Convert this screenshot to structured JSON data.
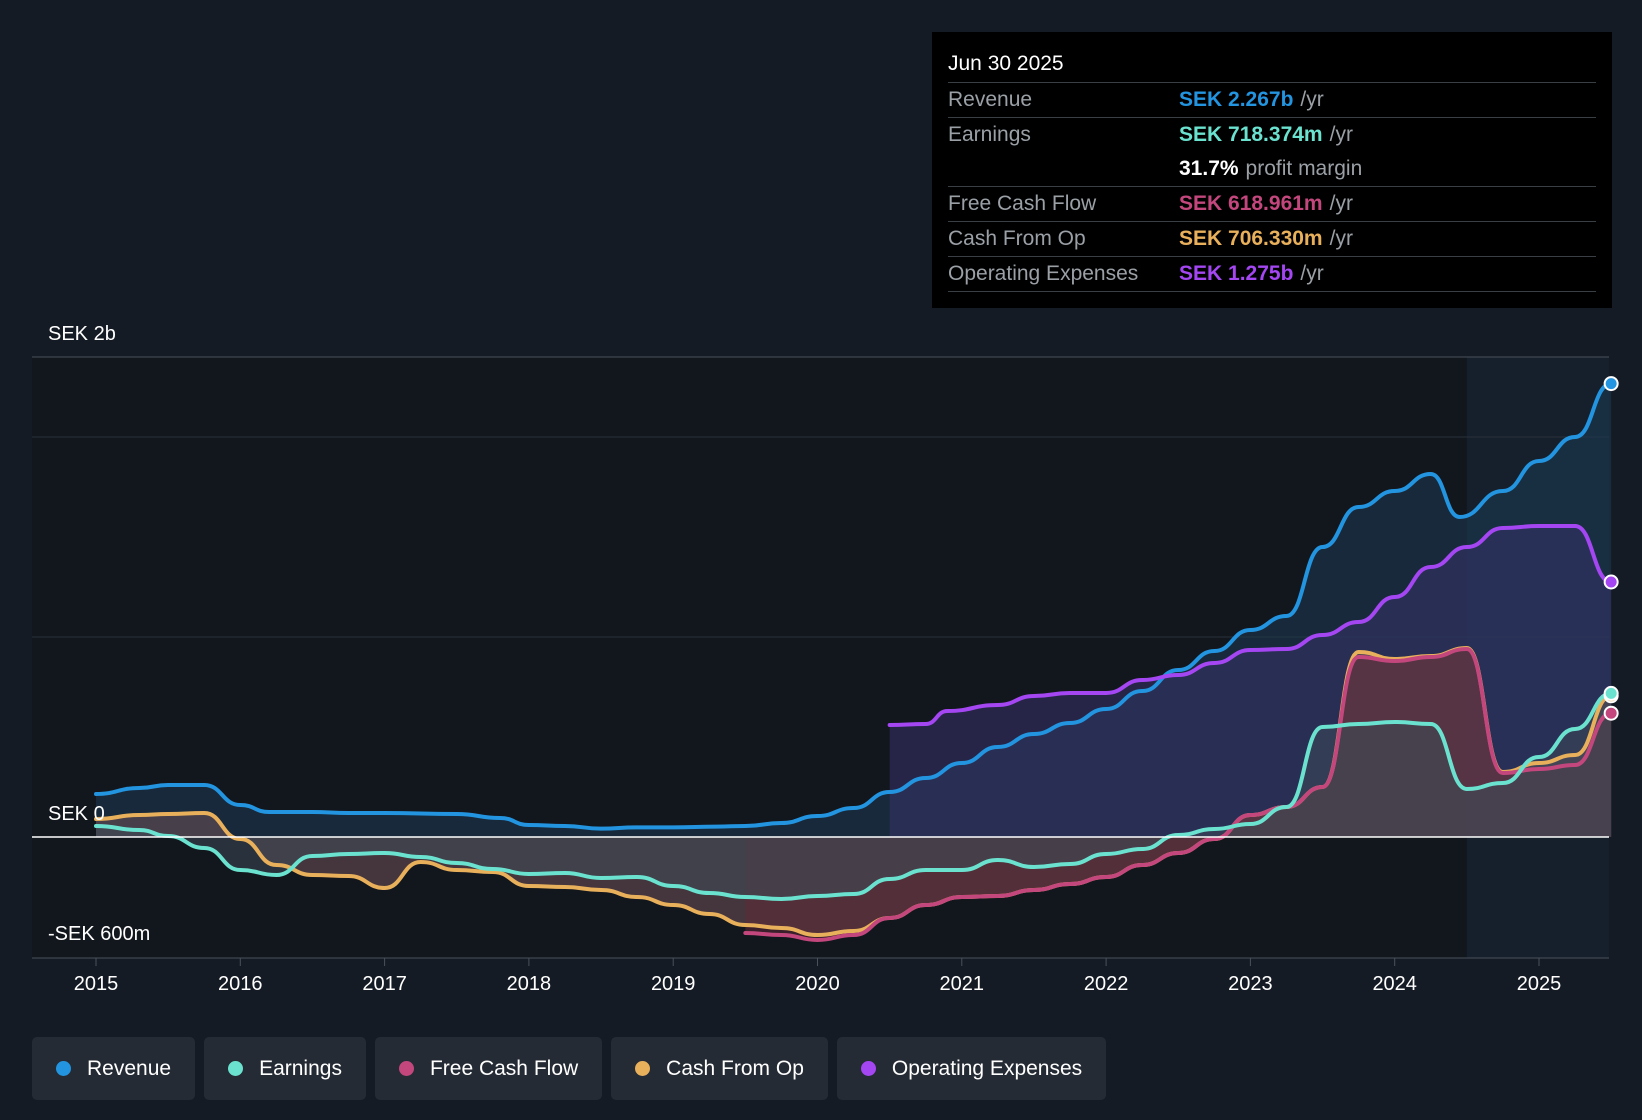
{
  "tooltip": {
    "date": "Jun 30 2025",
    "rows": {
      "revenue": {
        "label": "Revenue",
        "value": "SEK 2.267b",
        "unit": "/yr"
      },
      "earnings": {
        "label": "Earnings",
        "value": "SEK 718.374m",
        "unit": "/yr"
      },
      "margin": {
        "value": "31.7%",
        "unit": "profit margin"
      },
      "fcf": {
        "label": "Free Cash Flow",
        "value": "SEK 618.961m",
        "unit": "/yr"
      },
      "cfo": {
        "label": "Cash From Op",
        "value": "SEK 706.330m",
        "unit": "/yr"
      },
      "opex": {
        "label": "Operating Expenses",
        "value": "SEK 1.275b",
        "unit": "/yr"
      }
    }
  },
  "legend": [
    {
      "label": "Revenue",
      "color": "#2394df"
    },
    {
      "label": "Earnings",
      "color": "#6be2cf"
    },
    {
      "label": "Free Cash Flow",
      "color": "#c3477d"
    },
    {
      "label": "Cash From Op",
      "color": "#e9b05c"
    },
    {
      "label": "Operating Expenses",
      "color": "#a446f2"
    }
  ],
  "chart_data": {
    "type": "line",
    "title": "",
    "currency": "SEK",
    "ylim": [
      -600,
      2400
    ],
    "y_labels": {
      "top": "SEK 2b",
      "zero": "SEK 0",
      "bottom": "-SEK 600m"
    },
    "x_ticks": [
      "2015",
      "2016",
      "2017",
      "2018",
      "2019",
      "2020",
      "2021",
      "2022",
      "2023",
      "2024",
      "2025"
    ],
    "x_range": [
      2014.55,
      2025.5
    ],
    "forecast_start": 2024.5,
    "series": [
      {
        "name": "Revenue",
        "color": "#2394df",
        "fill": "#1b3a52",
        "points": [
          [
            2015.0,
            215
          ],
          [
            2015.3,
            245
          ],
          [
            2015.5,
            260
          ],
          [
            2015.75,
            260
          ],
          [
            2016.0,
            160
          ],
          [
            2016.2,
            125
          ],
          [
            2016.5,
            125
          ],
          [
            2016.75,
            120
          ],
          [
            2017.0,
            120
          ],
          [
            2017.5,
            115
          ],
          [
            2017.8,
            95
          ],
          [
            2018.0,
            60
          ],
          [
            2018.25,
            55
          ],
          [
            2018.5,
            42
          ],
          [
            2018.75,
            48
          ],
          [
            2019.0,
            48
          ],
          [
            2019.3,
            52
          ],
          [
            2019.5,
            55
          ],
          [
            2019.75,
            70
          ],
          [
            2020.0,
            105
          ],
          [
            2020.25,
            145
          ],
          [
            2020.5,
            225
          ],
          [
            2020.75,
            295
          ],
          [
            2021.0,
            370
          ],
          [
            2021.25,
            450
          ],
          [
            2021.5,
            515
          ],
          [
            2021.75,
            570
          ],
          [
            2022.0,
            640
          ],
          [
            2022.25,
            730
          ],
          [
            2022.5,
            835
          ],
          [
            2022.75,
            930
          ],
          [
            2023.0,
            1035
          ],
          [
            2023.25,
            1105
          ],
          [
            2023.5,
            1450
          ],
          [
            2023.75,
            1650
          ],
          [
            2024.0,
            1730
          ],
          [
            2024.25,
            1815
          ],
          [
            2024.45,
            1600
          ],
          [
            2024.75,
            1730
          ],
          [
            2025.0,
            1880
          ],
          [
            2025.25,
            2000
          ],
          [
            2025.5,
            2267
          ]
        ]
      },
      {
        "name": "Operating Expenses",
        "color": "#a446f2",
        "fill": "#37336a",
        "points": [
          [
            2020.5,
            560
          ],
          [
            2020.75,
            565
          ],
          [
            2020.9,
            630
          ],
          [
            2021.25,
            660
          ],
          [
            2021.5,
            705
          ],
          [
            2021.75,
            720
          ],
          [
            2022.0,
            720
          ],
          [
            2022.25,
            785
          ],
          [
            2022.5,
            810
          ],
          [
            2022.75,
            870
          ],
          [
            2023.0,
            935
          ],
          [
            2023.25,
            940
          ],
          [
            2023.5,
            1010
          ],
          [
            2023.75,
            1075
          ],
          [
            2024.0,
            1200
          ],
          [
            2024.25,
            1350
          ],
          [
            2024.5,
            1450
          ],
          [
            2024.75,
            1545
          ],
          [
            2025.0,
            1555
          ],
          [
            2025.25,
            1555
          ],
          [
            2025.5,
            1275
          ]
        ]
      },
      {
        "name": "Cash From Op",
        "color": "#e9b05c",
        "fill": "#6f5258",
        "points": [
          [
            2015.0,
            90
          ],
          [
            2015.3,
            110
          ],
          [
            2015.5,
            115
          ],
          [
            2015.75,
            120
          ],
          [
            2016.0,
            -10
          ],
          [
            2016.25,
            -140
          ],
          [
            2016.5,
            -190
          ],
          [
            2016.75,
            -195
          ],
          [
            2017.0,
            -255
          ],
          [
            2017.25,
            -125
          ],
          [
            2017.5,
            -165
          ],
          [
            2017.75,
            -175
          ],
          [
            2018.0,
            -245
          ],
          [
            2018.25,
            -250
          ],
          [
            2018.5,
            -265
          ],
          [
            2018.75,
            -300
          ],
          [
            2019.0,
            -340
          ],
          [
            2019.25,
            -385
          ],
          [
            2019.5,
            -440
          ],
          [
            2019.75,
            -455
          ],
          [
            2020.0,
            -490
          ],
          [
            2020.25,
            -470
          ],
          [
            2020.5,
            -405
          ],
          [
            2020.75,
            -340
          ],
          [
            2021.0,
            -300
          ],
          [
            2021.25,
            -295
          ],
          [
            2021.5,
            -265
          ],
          [
            2021.75,
            -235
          ],
          [
            2022.0,
            -200
          ],
          [
            2022.25,
            -140
          ],
          [
            2022.5,
            -80
          ],
          [
            2022.75,
            -10
          ],
          [
            2023.0,
            110
          ],
          [
            2023.25,
            150
          ],
          [
            2023.5,
            250
          ],
          [
            2023.75,
            925
          ],
          [
            2024.0,
            890
          ],
          [
            2024.25,
            905
          ],
          [
            2024.5,
            945
          ],
          [
            2024.75,
            325
          ],
          [
            2025.0,
            370
          ],
          [
            2025.25,
            410
          ],
          [
            2025.5,
            706
          ]
        ]
      },
      {
        "name": "Free Cash Flow",
        "color": "#c3477d",
        "fill": "#5c2a36",
        "points": [
          [
            2019.5,
            -480
          ],
          [
            2019.75,
            -490
          ],
          [
            2020.0,
            -515
          ],
          [
            2020.25,
            -490
          ],
          [
            2020.5,
            -405
          ],
          [
            2020.75,
            -340
          ],
          [
            2021.0,
            -300
          ],
          [
            2021.25,
            -295
          ],
          [
            2021.5,
            -265
          ],
          [
            2021.75,
            -235
          ],
          [
            2022.0,
            -200
          ],
          [
            2022.25,
            -140
          ],
          [
            2022.5,
            -80
          ],
          [
            2022.75,
            -10
          ],
          [
            2023.0,
            110
          ],
          [
            2023.25,
            150
          ],
          [
            2023.5,
            250
          ],
          [
            2023.75,
            900
          ],
          [
            2024.0,
            880
          ],
          [
            2024.25,
            900
          ],
          [
            2024.5,
            940
          ],
          [
            2024.75,
            320
          ],
          [
            2025.0,
            340
          ],
          [
            2025.25,
            360
          ],
          [
            2025.5,
            619
          ]
        ]
      },
      {
        "name": "Earnings",
        "color": "#6be2cf",
        "fill": "#3d4a55",
        "points": [
          [
            2015.0,
            55
          ],
          [
            2015.3,
            35
          ],
          [
            2015.5,
            5
          ],
          [
            2015.75,
            -55
          ],
          [
            2016.0,
            -165
          ],
          [
            2016.25,
            -190
          ],
          [
            2016.5,
            -95
          ],
          [
            2016.75,
            -85
          ],
          [
            2017.0,
            -80
          ],
          [
            2017.25,
            -100
          ],
          [
            2017.5,
            -130
          ],
          [
            2017.75,
            -160
          ],
          [
            2018.0,
            -185
          ],
          [
            2018.25,
            -180
          ],
          [
            2018.5,
            -205
          ],
          [
            2018.75,
            -200
          ],
          [
            2019.0,
            -245
          ],
          [
            2019.25,
            -280
          ],
          [
            2019.5,
            -300
          ],
          [
            2019.75,
            -310
          ],
          [
            2020.0,
            -295
          ],
          [
            2020.25,
            -285
          ],
          [
            2020.5,
            -210
          ],
          [
            2020.75,
            -165
          ],
          [
            2021.0,
            -165
          ],
          [
            2021.25,
            -115
          ],
          [
            2021.5,
            -150
          ],
          [
            2021.75,
            -135
          ],
          [
            2022.0,
            -85
          ],
          [
            2022.25,
            -60
          ],
          [
            2022.5,
            10
          ],
          [
            2022.75,
            40
          ],
          [
            2023.0,
            65
          ],
          [
            2023.25,
            150
          ],
          [
            2023.5,
            550
          ],
          [
            2023.75,
            565
          ],
          [
            2024.0,
            575
          ],
          [
            2024.25,
            565
          ],
          [
            2024.5,
            240
          ],
          [
            2024.75,
            270
          ],
          [
            2025.0,
            400
          ],
          [
            2025.25,
            540
          ],
          [
            2025.5,
            718
          ]
        ]
      }
    ]
  }
}
